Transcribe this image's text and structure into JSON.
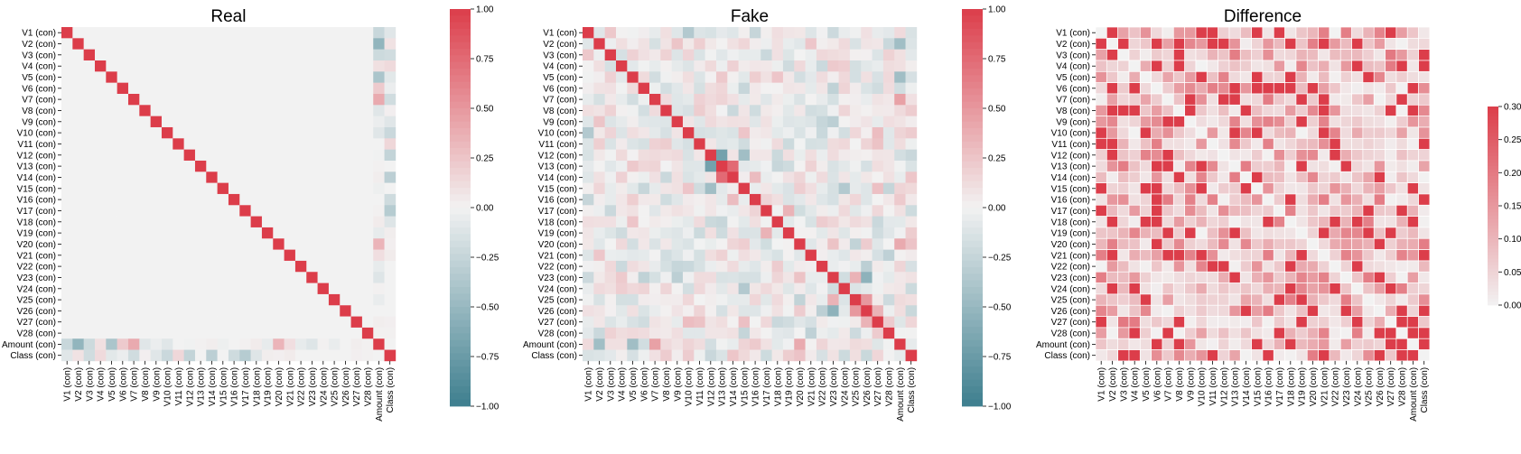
{
  "chart_data": [
    {
      "type": "heatmap",
      "title": "Real",
      "labels": [
        "V1 (con)",
        "V2 (con)",
        "V3 (con)",
        "V4 (con)",
        "V5 (con)",
        "V6 (con)",
        "V7 (con)",
        "V8 (con)",
        "V9 (con)",
        "V10 (con)",
        "V11 (con)",
        "V12 (con)",
        "V13 (con)",
        "V14 (con)",
        "V15 (con)",
        "V16 (con)",
        "V17 (con)",
        "V18 (con)",
        "V19 (con)",
        "V20 (con)",
        "V21 (con)",
        "V22 (con)",
        "V23 (con)",
        "V24 (con)",
        "V25 (con)",
        "V26 (con)",
        "V27 (con)",
        "V28 (con)",
        "Amount (con)",
        "Class (con)"
      ],
      "amount_row": [
        -0.23,
        -0.53,
        -0.21,
        0.1,
        -0.39,
        0.22,
        0.4,
        -0.1,
        -0.04,
        -0.1,
        0.0,
        -0.01,
        0.01,
        0.03,
        -0.03,
        0.0,
        0.01,
        0.04,
        -0.06,
        0.34,
        0.11,
        -0.06,
        -0.11,
        0.01,
        -0.05,
        0.0,
        0.03,
        0.01,
        1.0,
        0.0
      ],
      "class_row": [
        -0.1,
        0.09,
        -0.19,
        0.13,
        -0.09,
        -0.04,
        -0.19,
        0.02,
        -0.1,
        -0.22,
        0.15,
        -0.26,
        0.0,
        -0.3,
        0.0,
        -0.2,
        -0.33,
        -0.11,
        0.03,
        0.02,
        0.04,
        0.0,
        0.0,
        0.0,
        0.0,
        0.0,
        0.02,
        0.01,
        0.0,
        1.0
      ],
      "colorbar": {
        "min": -1.0,
        "max": 1.0,
        "ticks": [
          "1.00",
          "0.75",
          "0.50",
          "0.25",
          "0.00",
          "−0.25",
          "−0.50",
          "−0.75",
          "−1.00"
        ]
      }
    },
    {
      "type": "heatmap",
      "title": "Fake",
      "labels": [
        "V1 (con)",
        "V2 (con)",
        "V3 (con)",
        "V4 (con)",
        "V5 (con)",
        "V6 (con)",
        "V7 (con)",
        "V8 (con)",
        "V9 (con)",
        "V10 (con)",
        "V11 (con)",
        "V12 (con)",
        "V13 (con)",
        "V14 (con)",
        "V15 (con)",
        "V16 (con)",
        "V17 (con)",
        "V18 (con)",
        "V19 (con)",
        "V20 (con)",
        "V21 (con)",
        "V22 (con)",
        "V23 (con)",
        "V24 (con)",
        "V25 (con)",
        "V26 (con)",
        "V27 (con)",
        "V28 (con)",
        "Amount (con)",
        "Class (con)"
      ],
      "seed": 7,
      "amplitude": 0.22,
      "highlights": [
        [
          12,
          11,
          -0.7
        ],
        [
          12,
          13,
          0.75
        ],
        [
          14,
          11,
          -0.45
        ],
        [
          23,
          14,
          -0.35
        ],
        [
          22,
          25,
          -0.55
        ],
        [
          24,
          25,
          0.5
        ],
        [
          4,
          28,
          -0.45
        ],
        [
          1,
          28,
          -0.5
        ],
        [
          9,
          0,
          -0.35
        ],
        [
          28,
          1,
          -0.45
        ],
        [
          28,
          6,
          0.45
        ],
        [
          19,
          28,
          0.4
        ],
        [
          24,
          22,
          0.35
        ],
        [
          26,
          25,
          0.35
        ],
        [
          21,
          25,
          -0.3
        ],
        [
          15,
          13,
          0.3
        ],
        [
          18,
          16,
          0.35
        ]
      ],
      "colorbar": {
        "min": -1.0,
        "max": 1.0,
        "ticks": [
          "1.00",
          "0.75",
          "0.50",
          "0.25",
          "0.00",
          "−0.25",
          "−0.50",
          "−0.75",
          "−1.00"
        ]
      }
    },
    {
      "type": "heatmap",
      "title": "Difference",
      "labels": [
        "V1 (con)",
        "V2 (con)",
        "V3 (con)",
        "V4 (con)",
        "V5 (con)",
        "V6 (con)",
        "V7 (con)",
        "V8 (con)",
        "V9 (con)",
        "V10 (con)",
        "V11 (con)",
        "V12 (con)",
        "V13 (con)",
        "V14 (con)",
        "V15 (con)",
        "V16 (con)",
        "V17 (con)",
        "V18 (con)",
        "V19 (con)",
        "V20 (con)",
        "V21 (con)",
        "V22 (con)",
        "V23 (con)",
        "V24 (con)",
        "V25 (con)",
        "V26 (con)",
        "V27 (con)",
        "V28 (con)",
        "Amount (con)",
        "Class (con)"
      ],
      "seed": 19,
      "colorbar": {
        "min": 0.0,
        "max": 0.3,
        "ticks": [
          "0.30",
          "0.25",
          "0.20",
          "0.15",
          "0.10",
          "0.05",
          "0.00"
        ]
      }
    }
  ],
  "colors": {
    "pos": "#dc3d4a",
    "neg": "#3d7e8e",
    "mid": "#f2f2f2",
    "background": "#ffffff"
  }
}
